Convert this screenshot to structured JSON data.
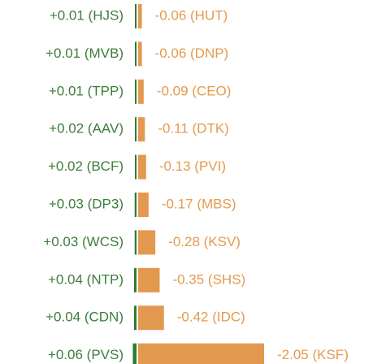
{
  "chart_data": {
    "type": "diverging-bar",
    "series": [
      {
        "color": "#2e7d32",
        "values": [
          0.01,
          0.01,
          0.01,
          0.02,
          0.02,
          0.03,
          0.03,
          0.04,
          0.04,
          0.06
        ],
        "value_labels": [
          "+0.01 (HJS)",
          "+0.01 (MVB)",
          "+0.01 (TPP)",
          "+0.02 (AAV)",
          "+0.02 (BCF)",
          "+0.03 (DP3)",
          "+0.03 (WCS)",
          "+0.04 (NTP)",
          "+0.04 (CDN)",
          "+0.06 (PVS)"
        ]
      },
      {
        "color": "#e3984f",
        "values": [
          -0.06,
          -0.06,
          -0.09,
          -0.11,
          -0.13,
          -0.17,
          -0.28,
          -0.35,
          -0.42,
          -2.05
        ],
        "value_labels": [
          "-0.06 (HUT)",
          "-0.06 (DNP)",
          "-0.09 (CEO)",
          "-0.11 (DTK)",
          "-0.13 (PVI)",
          "-0.17 (MBS)",
          "-0.28 (KSV)",
          "-0.35 (SHS)",
          "-0.42 (IDC)",
          "-2.05 (KSF)"
        ]
      }
    ]
  }
}
